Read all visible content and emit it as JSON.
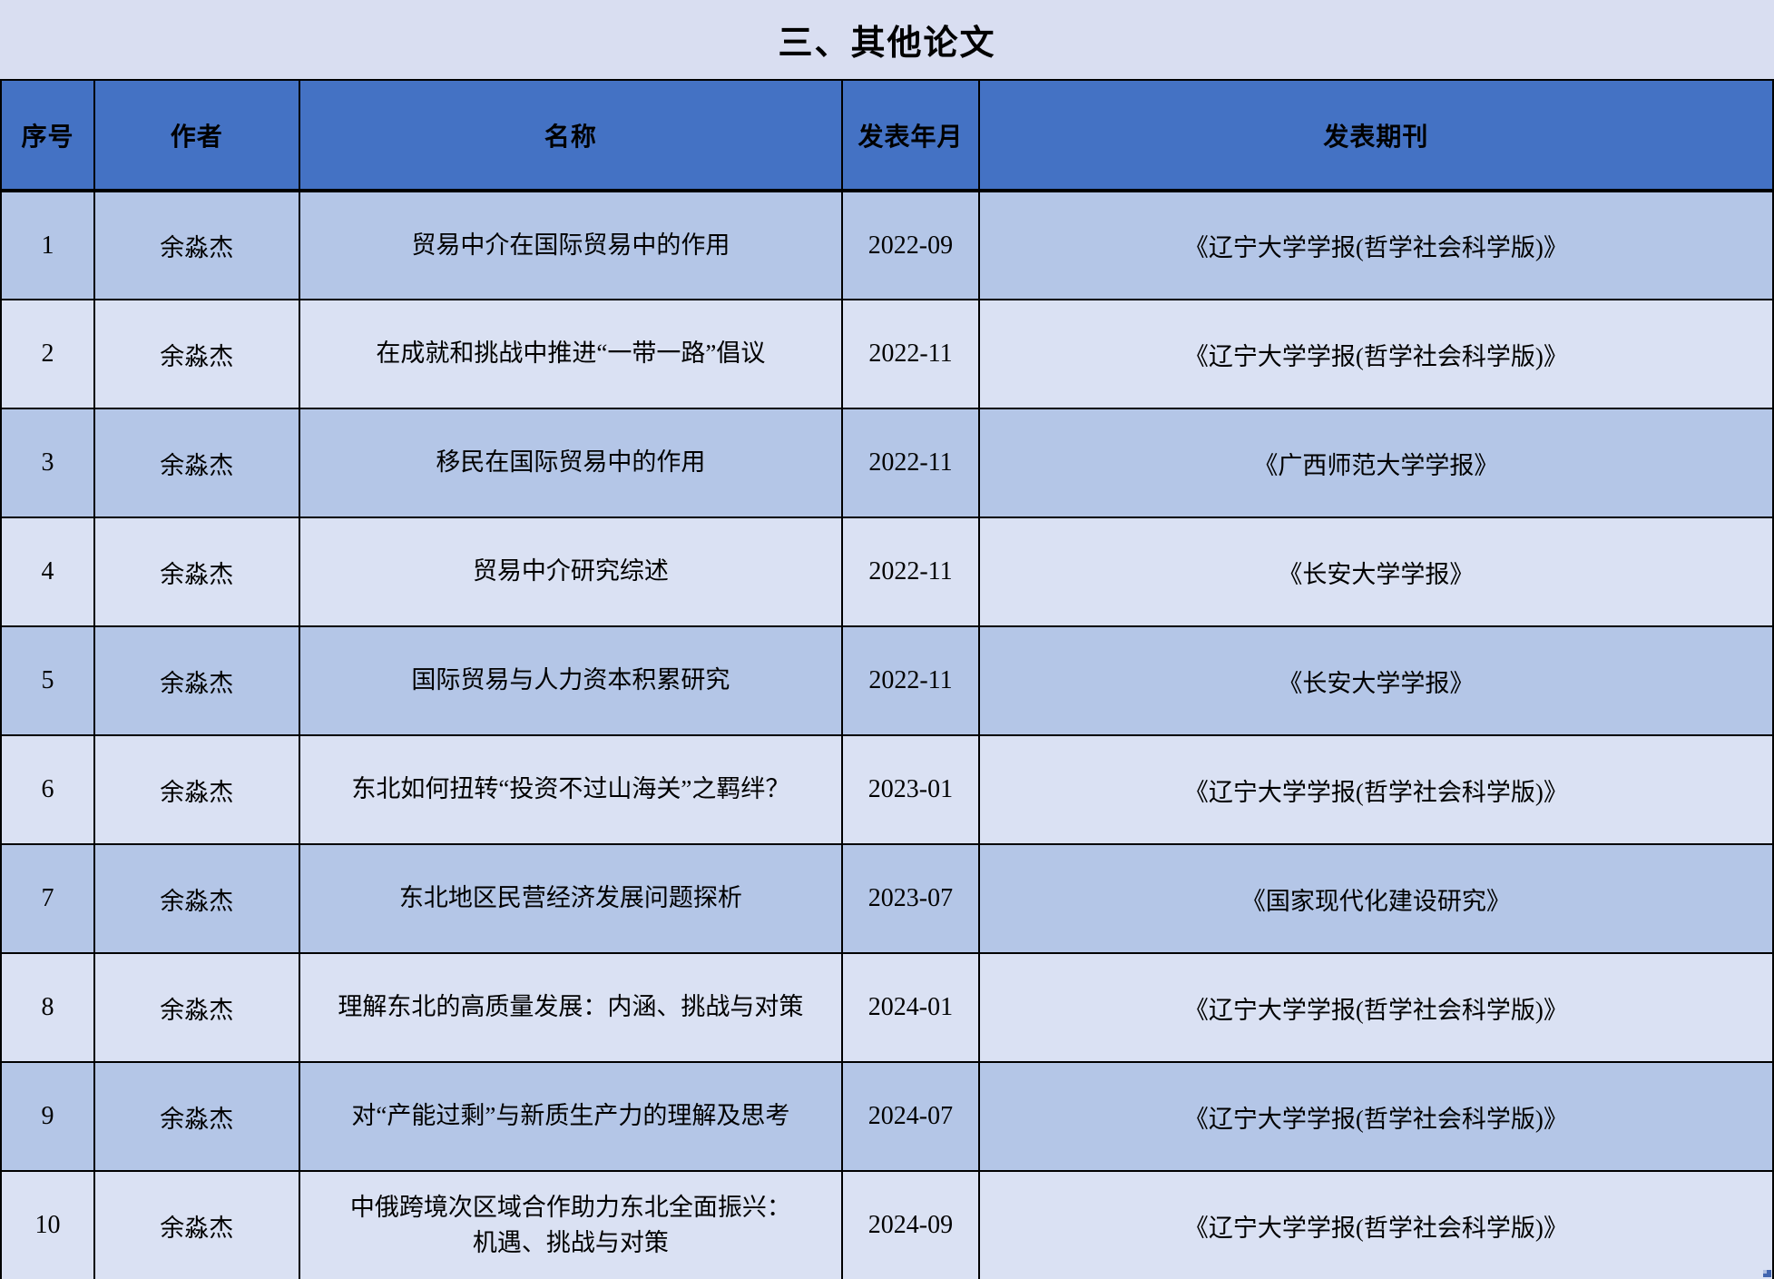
{
  "title": "三、其他论文",
  "colors": {
    "header_bg": "#4472C4",
    "row_odd_bg": "#B4C6E7",
    "row_even_bg": "#DAE1F3",
    "title_bar_bg": "#D9DEF1",
    "grid_line": "#000000",
    "text": "#000000"
  },
  "table": {
    "columns": [
      "序号",
      "作者",
      "名称",
      "发表年月",
      "发表期刊"
    ],
    "rows": [
      {
        "no": "1",
        "author": "余淼杰",
        "title": "贸易中介在国际贸易中的作用",
        "date": "2022-09",
        "journal": "《辽宁大学学报(哲学社会科学版)》"
      },
      {
        "no": "2",
        "author": "余淼杰",
        "title": "在成就和挑战中推进“一带一路”倡议",
        "date": "2022-11",
        "journal": "《辽宁大学学报(哲学社会科学版)》"
      },
      {
        "no": "3",
        "author": "余淼杰",
        "title": "移民在国际贸易中的作用",
        "date": "2022-11",
        "journal": "《广西师范大学学报》"
      },
      {
        "no": "4",
        "author": "余淼杰",
        "title": "贸易中介研究综述",
        "date": "2022-11",
        "journal": "《长安大学学报》"
      },
      {
        "no": "5",
        "author": "余淼杰",
        "title": "国际贸易与人力资本积累研究",
        "date": "2022-11",
        "journal": "《长安大学学报》"
      },
      {
        "no": "6",
        "author": "余淼杰",
        "title": "东北如何扭转“投资不过山海关”之羁绊？",
        "date": "2023-01",
        "journal": "《辽宁大学学报(哲学社会科学版)》"
      },
      {
        "no": "7",
        "author": "余淼杰",
        "title": "东北地区民营经济发展问题探析",
        "date": "2023-07",
        "journal": "《国家现代化建设研究》"
      },
      {
        "no": "8",
        "author": "余淼杰",
        "title": "理解东北的高质量发展：内涵、挑战与对策",
        "date": "2024-01",
        "journal": "《辽宁大学学报(哲学社会科学版)》"
      },
      {
        "no": "9",
        "author": "余淼杰",
        "title": "对“产能过剩”与新质生产力的理解及思考",
        "date": "2024-07",
        "journal": "《辽宁大学学报(哲学社会科学版)》"
      },
      {
        "no": "10",
        "author": "余淼杰",
        "title": "中俄跨境次区域合作助力东北全面振兴：\n机遇、挑战与对策",
        "date": "2024-09",
        "journal": "《辽宁大学学报(哲学社会科学版)》"
      }
    ]
  }
}
